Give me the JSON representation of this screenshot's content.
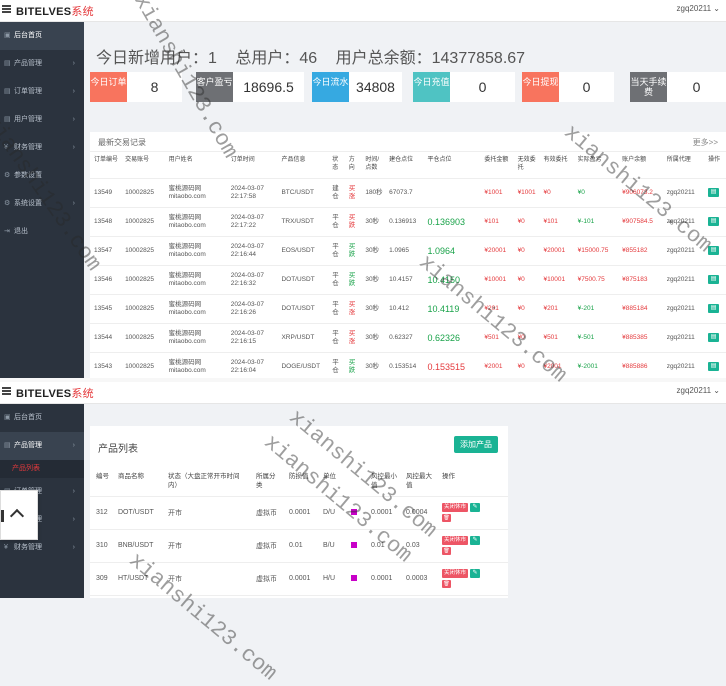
{
  "brand": {
    "name": "BITELVES",
    "suffix": "系统"
  },
  "user": {
    "name_top": "zgq20211 ⌄",
    "name_bottom": "zgq20211 ⌄"
  },
  "sidebar_top": [
    {
      "icon": "▣",
      "label": "后台首页",
      "active": true
    },
    {
      "icon": "▤",
      "label": "产品管理",
      "arrow": "›"
    },
    {
      "icon": "▤",
      "label": "订单管理",
      "arrow": "›"
    },
    {
      "icon": "▤",
      "label": "用户管理",
      "arrow": "›"
    },
    {
      "icon": "¥",
      "label": "财务管理",
      "arrow": "›"
    },
    {
      "icon": "⚙",
      "label": "参数设置"
    },
    {
      "icon": "⚙",
      "label": "系统设置",
      "arrow": "›"
    },
    {
      "icon": "⇥",
      "label": "退出"
    }
  ],
  "sidebar_bottom": [
    {
      "icon": "▣",
      "label": "后台首页"
    },
    {
      "icon": "▤",
      "label": "产品管理",
      "arrow": "›",
      "active": true
    },
    {
      "sub": true,
      "label": "产品列表"
    },
    {
      "icon": "▤",
      "label": "订单管理",
      "arrow": "›"
    },
    {
      "icon": "▤",
      "label": "用户管理",
      "arrow": "›"
    },
    {
      "icon": "¥",
      "label": "财务管理",
      "arrow": "›"
    }
  ],
  "stats": {
    "today_new": "今日新增用户：1",
    "total_users": "总用户：46",
    "total_balance": "用户总余额：14377858.67"
  },
  "cards": [
    {
      "label": "今日订单",
      "value": "8",
      "color": "#f8745e"
    },
    {
      "label": "客户盈亏",
      "value": "18696.5",
      "color": "#6e7074"
    },
    {
      "label": "今日流水",
      "value": "34808",
      "color": "#36a9e1"
    },
    {
      "label": "今日充值",
      "value": "0",
      "color": "#4fc3c3"
    },
    {
      "label": "今日提现",
      "value": "0",
      "color": "#f8745e"
    },
    {
      "label": "当天手续费",
      "value": "0",
      "color": "#6e7074"
    }
  ],
  "orders_panel": {
    "title": "最新交易记录",
    "more": "更多>>"
  },
  "orders_headers": [
    "订单编号",
    "交易账号",
    "用户姓名",
    "订单时间",
    "产品信息",
    "状态",
    "方向",
    "时间/点数",
    "建仓点位",
    "平仓点位",
    "委托金额",
    "无效委托",
    "有效委托",
    "实际盈亏",
    "账户余额",
    "所属代理",
    "操作"
  ],
  "orders": [
    {
      "id": "13549",
      "account": "10002825",
      "name1": "蜜桃源码网",
      "name2": "mitaobo.com",
      "date": "2024-03-07",
      "time": "22:17:58",
      "product": "BTC/USDT",
      "status": "建仓",
      "dir": "买涨",
      "dir_color": "red",
      "dur": "180秒",
      "open": "67073.7",
      "close": "",
      "amount": "¥1001",
      "invalid": "¥1001",
      "valid": "¥0",
      "pl": "¥0",
      "pl_color": "green",
      "balance": "¥906073.2",
      "agent": "zgq20211",
      "op": "▤"
    },
    {
      "id": "13548",
      "account": "10002825",
      "name1": "蜜桃源码网",
      "name2": "mitaobo.com",
      "date": "2024-03-07",
      "time": "22:17:22",
      "product": "TRX/USDT",
      "status": "平仓",
      "dir": "买跌",
      "dir_color": "red",
      "dur": "30秒",
      "open": "0.136913",
      "close": "0.136903",
      "close_color": "green",
      "amount": "¥101",
      "invalid": "¥0",
      "valid": "¥101",
      "pl": "¥-101",
      "pl_color": "green",
      "balance": "¥907584.5",
      "agent": "zgq20211",
      "op": "▤"
    },
    {
      "id": "13547",
      "account": "10002825",
      "name1": "蜜桃源码网",
      "name2": "mitaobo.com",
      "date": "2024-03-07",
      "time": "22:16:44",
      "product": "EOS/USDT",
      "status": "平仓",
      "dir": "买跌",
      "dir_color": "green",
      "dur": "30秒",
      "open": "1.0965",
      "close": "1.0964",
      "close_color": "green",
      "amount": "¥20001",
      "invalid": "¥0",
      "valid": "¥20001",
      "pl": "¥15000.75",
      "pl_color": "red",
      "balance": "¥855182",
      "agent": "zgq20211",
      "op": "▤"
    },
    {
      "id": "13546",
      "account": "10002825",
      "name1": "蜜桃源码网",
      "name2": "mitaobo.com",
      "date": "2024-03-07",
      "time": "22:16:32",
      "product": "DOT/USDT",
      "status": "平仓",
      "dir": "买跌",
      "dir_color": "green",
      "dur": "30秒",
      "open": "10.4157",
      "close": "10.4150",
      "close_color": "green",
      "amount": "¥10001",
      "invalid": "¥0",
      "valid": "¥10001",
      "pl": "¥7500.75",
      "pl_color": "red",
      "balance": "¥875183",
      "agent": "zgq20211",
      "op": "▤"
    },
    {
      "id": "13545",
      "account": "10002825",
      "name1": "蜜桃源码网",
      "name2": "mitaobo.com",
      "date": "2024-03-07",
      "time": "22:16:26",
      "product": "DOT/USDT",
      "status": "平仓",
      "dir": "买涨",
      "dir_color": "red",
      "dur": "30秒",
      "open": "10.412",
      "close": "10.4119",
      "close_color": "green",
      "amount": "¥201",
      "invalid": "¥0",
      "valid": "¥201",
      "pl": "¥-201",
      "pl_color": "green",
      "balance": "¥885184",
      "agent": "zgq20211",
      "op": "▤"
    },
    {
      "id": "13544",
      "account": "10002825",
      "name1": "蜜桃源码网",
      "name2": "mitaobo.com",
      "date": "2024-03-07",
      "time": "22:16:15",
      "product": "XRP/USDT",
      "status": "平仓",
      "dir": "买涨",
      "dir_color": "red",
      "dur": "30秒",
      "open": "0.62327",
      "close": "0.62326",
      "close_color": "green",
      "amount": "¥501",
      "invalid": "¥0",
      "valid": "¥501",
      "pl": "¥-501",
      "pl_color": "green",
      "balance": "¥885385",
      "agent": "zgq20211",
      "op": "▤"
    },
    {
      "id": "13543",
      "account": "10002825",
      "name1": "蜜桃源码网",
      "name2": "mitaobo.com",
      "date": "2024-03-07",
      "time": "22:16:04",
      "product": "DOGE/USDT",
      "status": "平仓",
      "dir": "买跌",
      "dir_color": "green",
      "dur": "30秒",
      "open": "0.153514",
      "close": "0.153515",
      "close_color": "red",
      "amount": "¥2001",
      "invalid": "¥0",
      "valid": "¥2001",
      "pl": "¥-2001",
      "pl_color": "green",
      "balance": "¥885886",
      "agent": "zgq20211",
      "op": "▤"
    }
  ],
  "products_panel": {
    "title": "产品列表",
    "add_button": "添加产品"
  },
  "products_headers": [
    "编号",
    "商品名称",
    "状态（大盘正常开市时间内）",
    "所属分类",
    "防损值",
    "单位",
    "",
    "风控最小值",
    "风控最大值",
    "操作"
  ],
  "products": [
    {
      "id": "312",
      "name": "DOT/USDT",
      "status": "开市",
      "category": "虚拟币",
      "loss": "0.0001",
      "unit": "D/U",
      "min": "0.0001",
      "max": "0.0004",
      "act": "关闭休市",
      "edit": "✎",
      "trash": "🗑"
    },
    {
      "id": "310",
      "name": "BNB/USDT",
      "status": "开市",
      "category": "虚拟币",
      "loss": "0.01",
      "unit": "B/U",
      "min": "0.01",
      "max": "0.03",
      "act": "关闭休市",
      "edit": "✎",
      "trash": "🗑"
    },
    {
      "id": "309",
      "name": "HT/USDT",
      "status": "开市",
      "category": "虚拟币",
      "loss": "0.0001",
      "unit": "H/U",
      "min": "0.0001",
      "max": "0.0003",
      "act": "关闭休市",
      "edit": "✎",
      "trash": "🗑"
    }
  ],
  "watermarks": [
    "xianshi123.com",
    "xianshi123.com",
    "xianshi123.com",
    "xianshi123.com",
    "xianshi123.com",
    "xianshi123.com",
    "xianshi123.com"
  ]
}
